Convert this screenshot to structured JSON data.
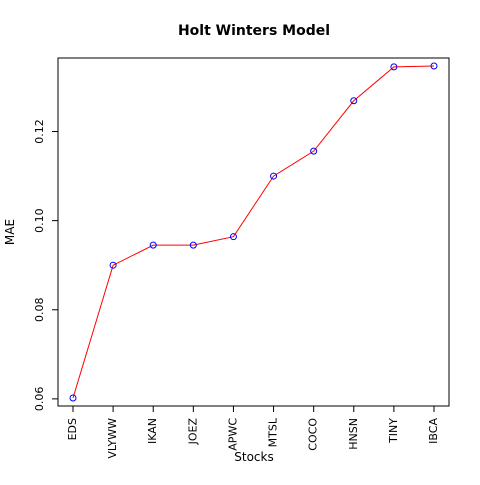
{
  "chart_data": {
    "type": "line",
    "title": "Holt Winters Model",
    "xlabel": "Stocks",
    "ylabel": "MAE",
    "categories": [
      "EDS",
      "VLYWW",
      "IKAN",
      "JOEZ",
      "APWC",
      "MTSL",
      "COCO",
      "HNSN",
      "TINY",
      "IBCA"
    ],
    "series": [
      {
        "values": [
          0.0602,
          0.09,
          0.0945,
          0.0945,
          0.0964,
          0.11,
          0.1156,
          0.1269,
          0.1345,
          0.1347
        ]
      }
    ],
    "yticks": [
      "0.06",
      "0.08",
      "0.10",
      "0.12"
    ],
    "ylim": [
      0.0584,
      0.1365
    ],
    "line_color": "#ff0000",
    "marker_color": "#0000ff",
    "marker": "open-circle",
    "grid": false
  }
}
